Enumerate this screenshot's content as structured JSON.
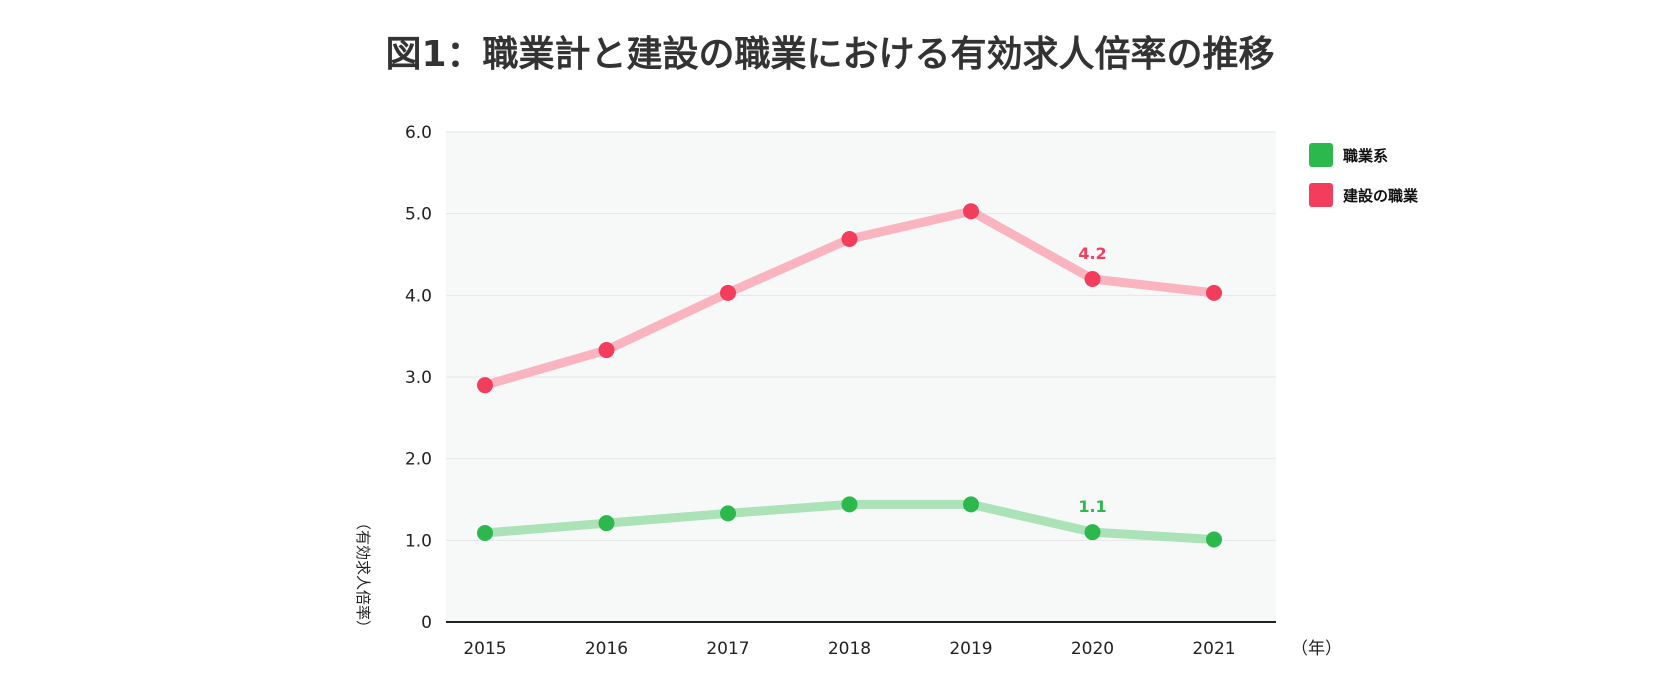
{
  "chart_data": {
    "type": "line",
    "title": "図1：職業計と建設の職業における有効求人倍率の推移",
    "xlabel": "（年）",
    "ylabel": "（有効求人倍率）",
    "x": [
      "2015",
      "2016",
      "2017",
      "2018",
      "2019",
      "2020",
      "2021"
    ],
    "y_ticks": [
      "0",
      "1.0",
      "2.0",
      "3.0",
      "4.0",
      "5.0",
      "6.0"
    ],
    "ylim": [
      0,
      6
    ],
    "grid": true,
    "legend_position": "top-right",
    "series": [
      {
        "name": "職業系",
        "values": [
          1.09,
          1.21,
          1.33,
          1.44,
          1.44,
          1.1,
          1.01
        ],
        "color": "#2db84d",
        "line_color": "#abe2b7",
        "labels": {
          "5": "1.1"
        }
      },
      {
        "name": "建設の職業",
        "values": [
          2.9,
          3.33,
          4.03,
          4.69,
          5.03,
          4.2,
          4.03
        ],
        "color": "#f23e5c",
        "line_color": "#f9b4c0",
        "labels": {
          "5": "4.2"
        }
      }
    ],
    "plot_background": "#f7f8f8"
  }
}
